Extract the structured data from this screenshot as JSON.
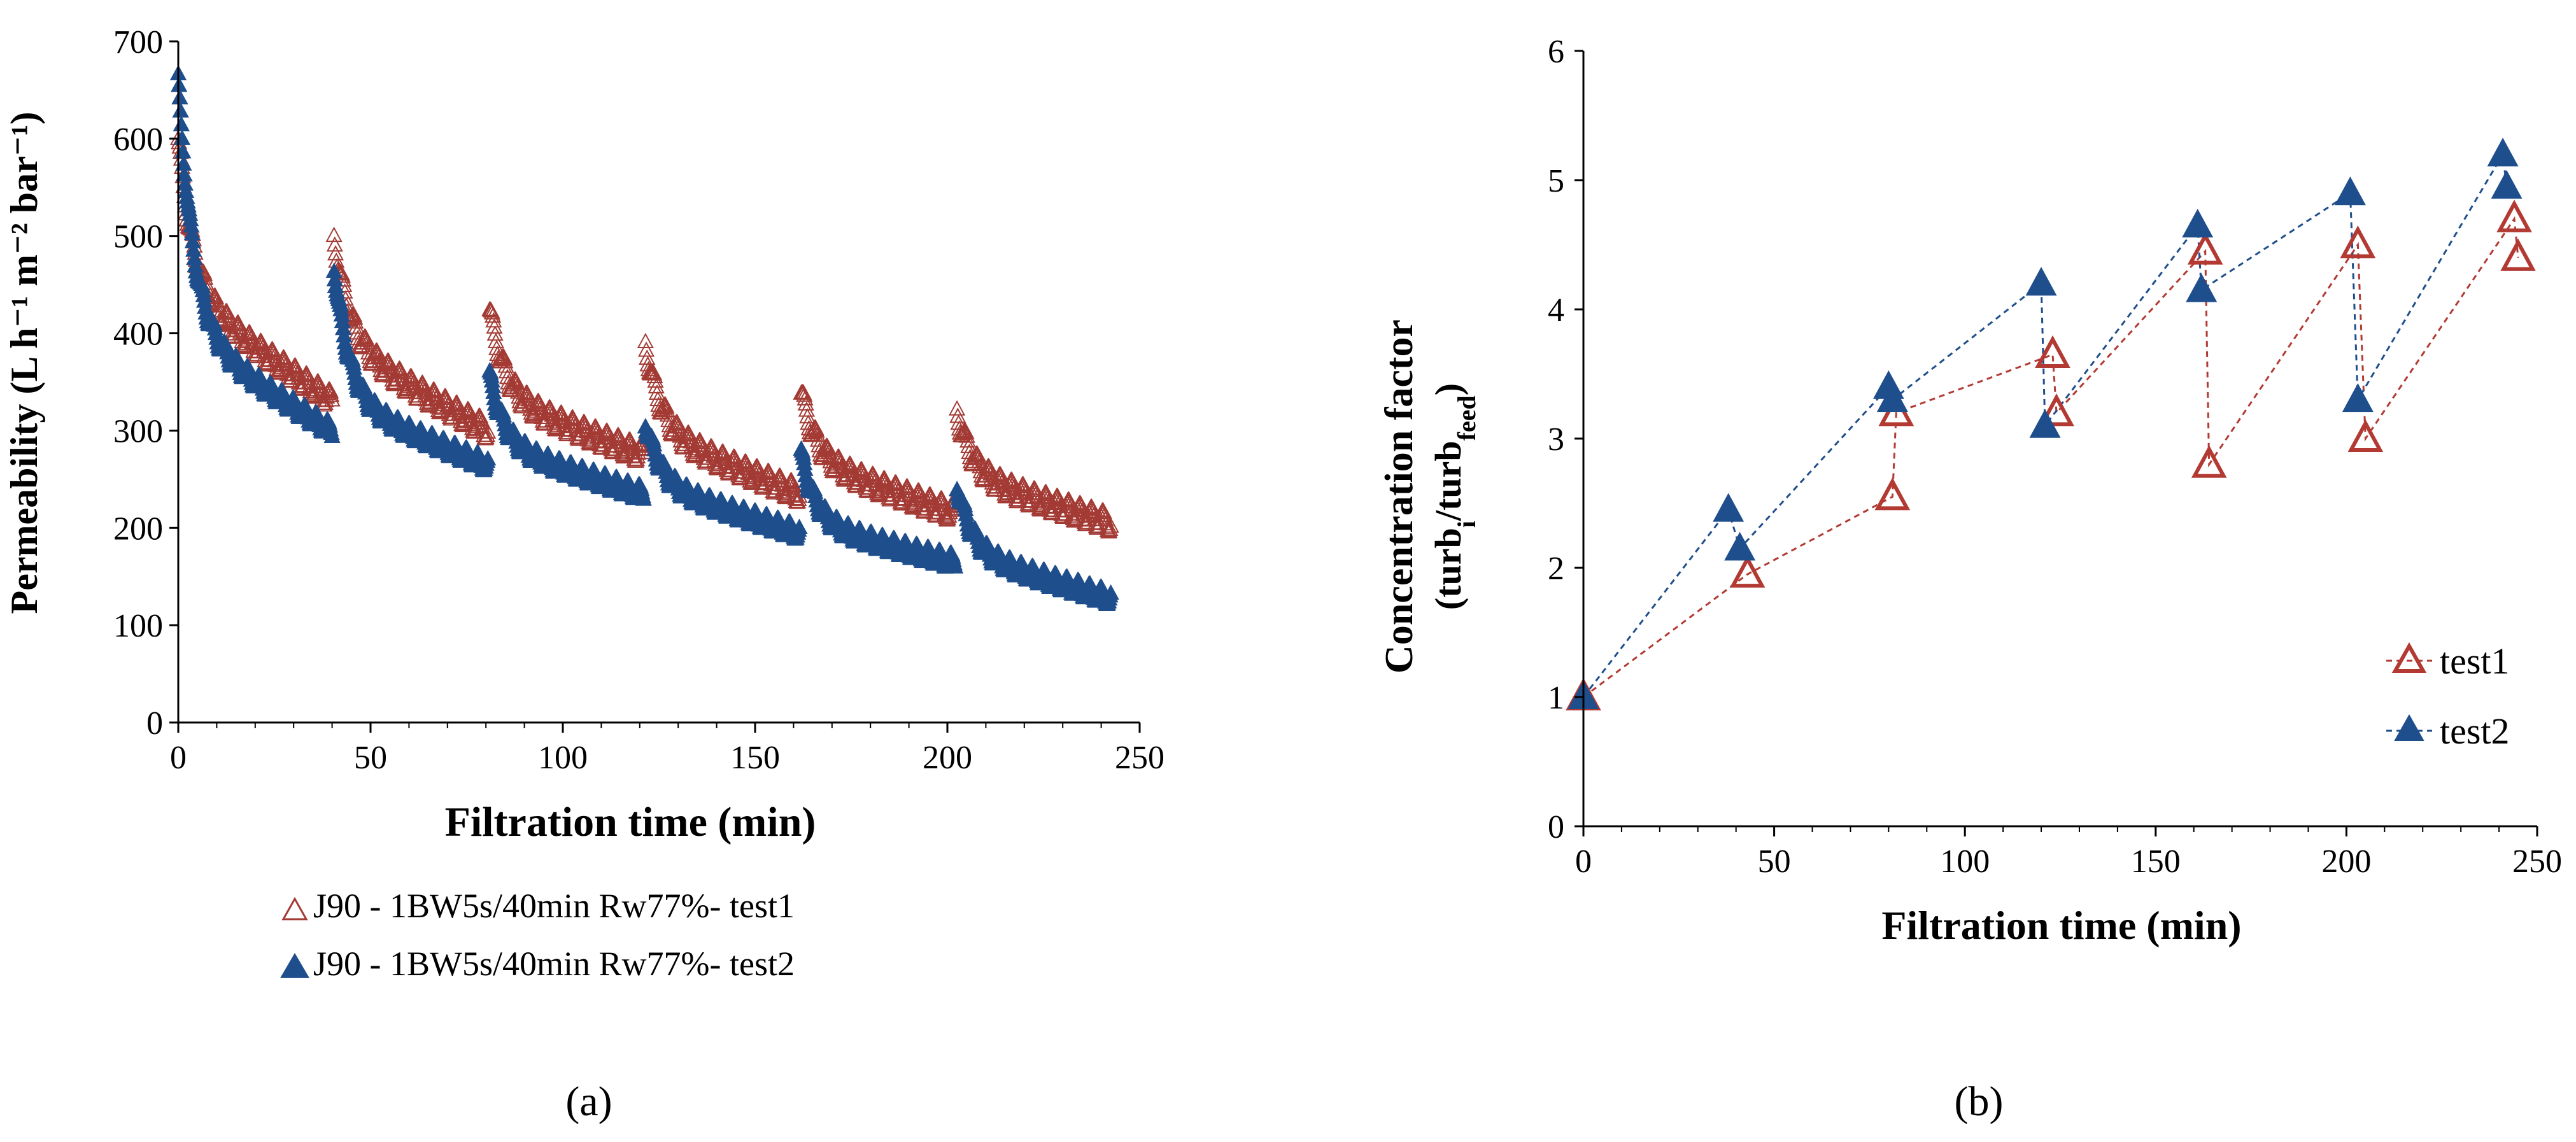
{
  "chart_data": [
    {
      "type": "scatter",
      "panel_label": "(a)",
      "xlabel": "Filtration time (min)",
      "ylabel": "Permeability (L h⁻¹ m⁻² bar⁻¹)",
      "xlim": [
        0,
        250
      ],
      "ylim": [
        0,
        700
      ],
      "xticks": [
        "0",
        "50",
        "100",
        "150",
        "200",
        "250"
      ],
      "yticks": [
        "0",
        "100",
        "200",
        "300",
        "400",
        "500",
        "600",
        "700"
      ],
      "legend_position": "below",
      "cycle_starts": [
        0,
        40.5,
        81,
        121.5,
        162,
        202.5
      ],
      "cycle_length": 40,
      "series": [
        {
          "name": "J90 - 1BW5s/40min Rw77%- test1",
          "marker": "open-triangle",
          "color": "#a33a34",
          "cycles": [
            {
              "start": 600,
              "knee": 440,
              "end": 330
            },
            {
              "start": 500,
              "knee": 390,
              "end": 300
            },
            {
              "start": 425,
              "knee": 335,
              "end": 275
            },
            {
              "start": 390,
              "knee": 300,
              "end": 235
            },
            {
              "start": 340,
              "knee": 270,
              "end": 215
            },
            {
              "start": 320,
              "knee": 255,
              "end": 205
            }
          ]
        },
        {
          "name": "J90 - 1BW5s/40min Rw77%- test2",
          "marker": "filled-triangle",
          "color": "#1f4e8c",
          "cycles": [
            {
              "start": 660,
              "knee": 400,
              "end": 300
            },
            {
              "start": 470,
              "knee": 330,
              "end": 265
            },
            {
              "start": 355,
              "knee": 285,
              "end": 235
            },
            {
              "start": 310,
              "knee": 245,
              "end": 195
            },
            {
              "start": 275,
              "knee": 205,
              "end": 165
            },
            {
              "start": 245,
              "knee": 175,
              "end": 128
            }
          ]
        }
      ]
    },
    {
      "type": "line",
      "panel_label": "(b)",
      "xlabel": "Filtration time (min)",
      "ylabel_line1": "Concentration factor",
      "ylabel_line2": "(turbi/turbfeed)",
      "ylabel_main": "turb",
      "ylabel_sub1": "i",
      "ylabel_sub2": "feed",
      "ylabel_open": "(",
      "ylabel_slash": "/",
      "ylabel_close": ")",
      "xlim": [
        0,
        250
      ],
      "ylim": [
        0,
        6
      ],
      "xticks": [
        "0",
        "50",
        "100",
        "150",
        "200",
        "250"
      ],
      "yticks": [
        "0",
        "1",
        "2",
        "3",
        "4",
        "5",
        "6"
      ],
      "legend_position": "right",
      "series": [
        {
          "name": "test1",
          "marker": "open-triangle",
          "color": "#b33a33",
          "x": [
            0,
            43,
            81,
            82,
            123,
            124,
            163,
            164,
            203,
            205,
            244,
            245
          ],
          "y": [
            1.0,
            1.95,
            2.55,
            3.2,
            3.65,
            3.2,
            4.45,
            2.8,
            4.5,
            3.0,
            4.7,
            4.4
          ]
        },
        {
          "name": "test2",
          "marker": "filled-triangle",
          "color": "#1f4e8c",
          "x": [
            0,
            38,
            41,
            80,
            81,
            120,
            121,
            161,
            162,
            201,
            203,
            241,
            242
          ],
          "y": [
            1.0,
            2.45,
            2.15,
            3.4,
            3.3,
            4.2,
            3.1,
            4.65,
            4.15,
            4.9,
            3.3,
            5.2,
            4.95
          ]
        }
      ]
    }
  ]
}
